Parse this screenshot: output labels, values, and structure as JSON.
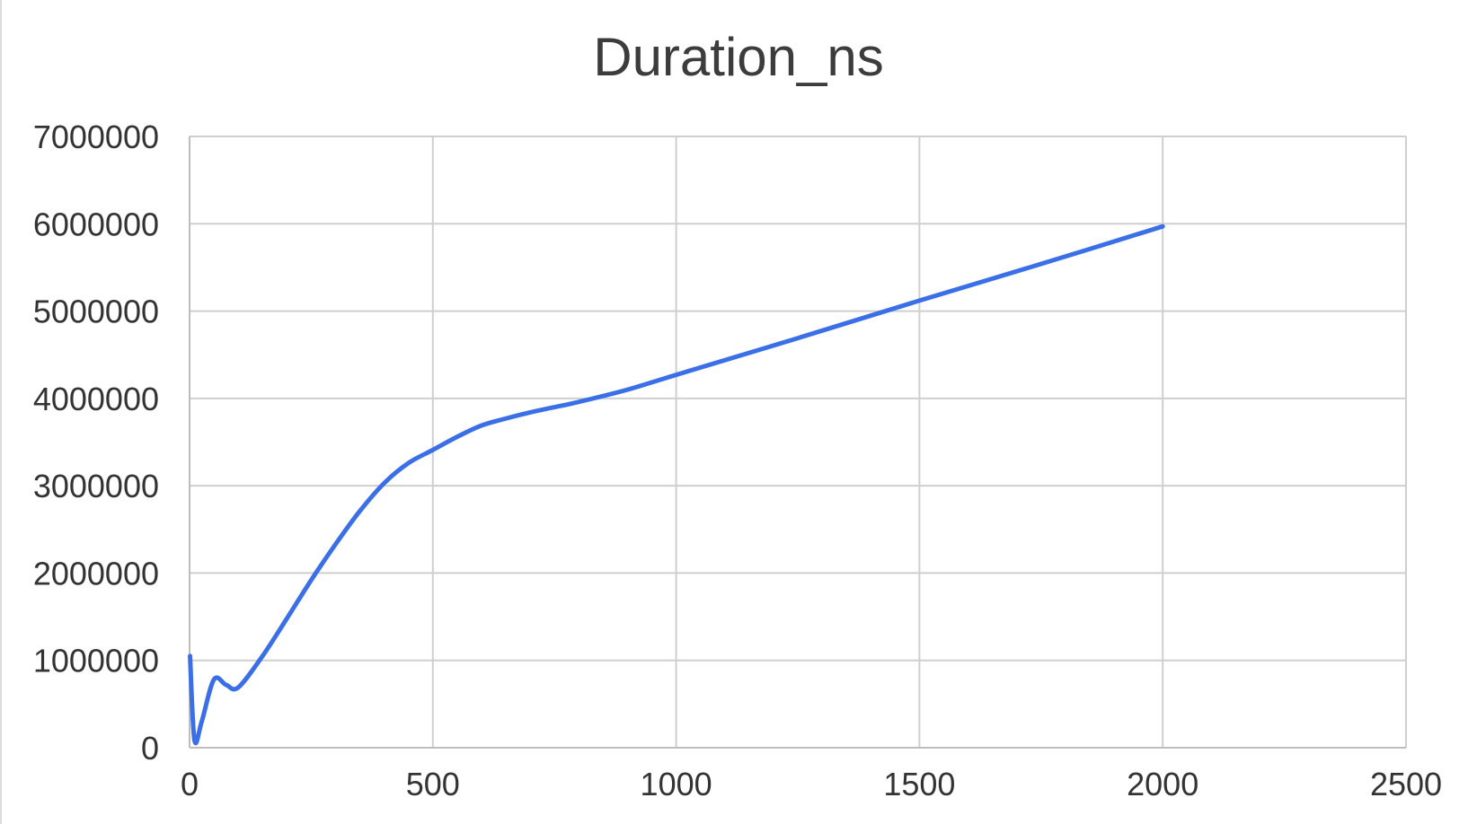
{
  "chart_data": {
    "type": "line",
    "title": "Duration_ns",
    "xlabel": "",
    "ylabel": "",
    "xlim": [
      0,
      2500
    ],
    "ylim": [
      0,
      7000000
    ],
    "x_ticks": [
      0,
      500,
      1000,
      1500,
      2000,
      2500
    ],
    "y_ticks": [
      0,
      1000000,
      2000000,
      3000000,
      4000000,
      5000000,
      6000000,
      7000000
    ],
    "x_tick_labels": [
      "0",
      "500",
      "1000",
      "1500",
      "2000",
      "2500"
    ],
    "y_tick_labels": [
      "0",
      "1000000",
      "2000000",
      "3000000",
      "4000000",
      "5000000",
      "6000000",
      "7000000"
    ],
    "grid": true,
    "legend": "none",
    "series": [
      {
        "color": "#3b6fe8",
        "x": [
          1,
          10,
          25,
          50,
          75,
          100,
          150,
          200,
          250,
          300,
          350,
          400,
          450,
          500,
          550,
          600,
          650,
          700,
          750,
          800,
          900,
          1000,
          1250,
          1500,
          1750,
          2000
        ],
        "y": [
          1050000,
          90000,
          300000,
          780000,
          720000,
          690000,
          1050000,
          1480000,
          1920000,
          2330000,
          2710000,
          3030000,
          3260000,
          3410000,
          3560000,
          3690000,
          3770000,
          3840000,
          3900000,
          3960000,
          4100000,
          4270000,
          4690000,
          5120000,
          5540000,
          5970000
        ]
      }
    ]
  }
}
